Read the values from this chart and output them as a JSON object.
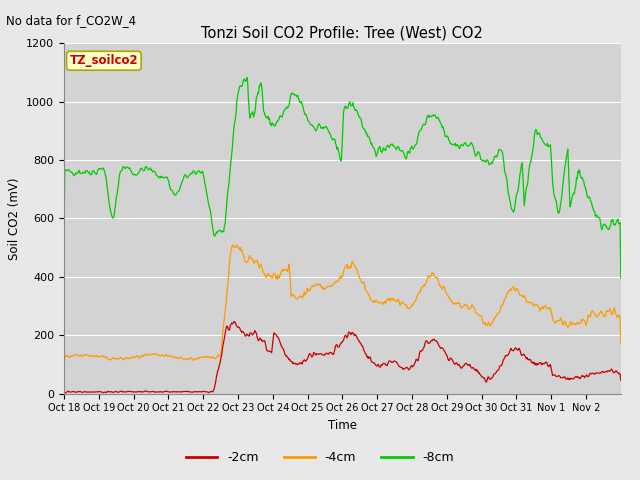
{
  "title": "Tonzi Soil CO2 Profile: Tree (West) CO2",
  "subtitle": "No data for f_CO2W_4",
  "ylabel": "Soil CO2 (mV)",
  "xlabel": "Time",
  "legend_label": "TZ_soilco2",
  "series_labels": [
    "-2cm",
    "-4cm",
    "-8cm"
  ],
  "series_colors": [
    "#cc0000",
    "#ff9900",
    "#00cc00"
  ],
  "ylim": [
    0,
    1200
  ],
  "background_color": "#e8e8e8",
  "plot_bg_color": "#d3d3d3",
  "tick_labels": [
    "Oct 18",
    "Oct 19",
    "Oct 20",
    "Oct 21",
    "Oct 22",
    "Oct 23",
    "Oct 24",
    "Oct 25",
    "Oct 26",
    "Oct 27",
    "Oct 28",
    "Oct 29",
    "Oct 30",
    "Oct 31",
    "Nov 1",
    "Nov 2"
  ],
  "n_days": 16,
  "yticks": [
    0,
    200,
    400,
    600,
    800,
    1000,
    1200
  ]
}
